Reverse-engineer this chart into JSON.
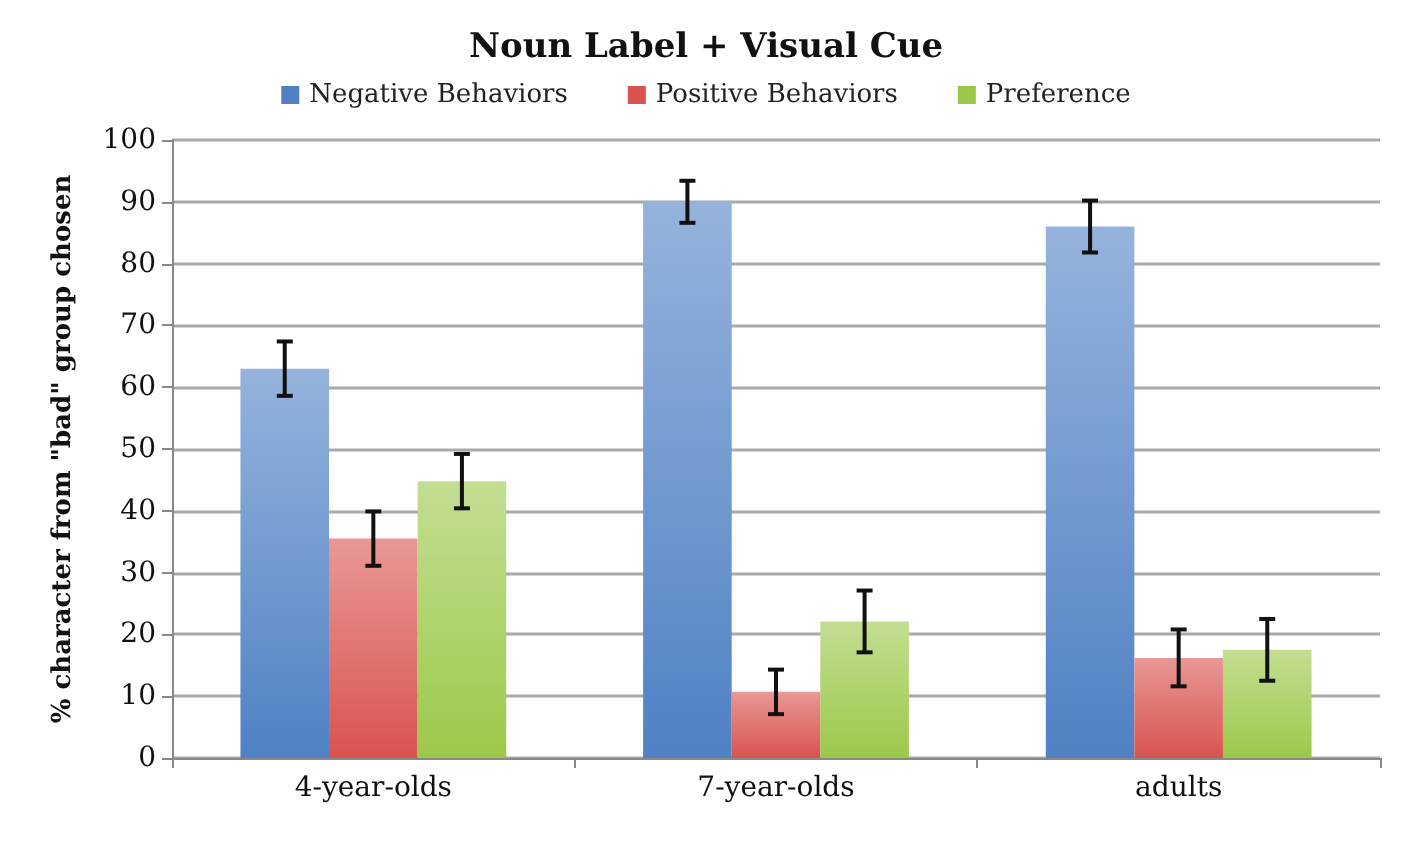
{
  "chart_data": {
    "type": "bar",
    "title": "Noun Label + Visual Cue",
    "ylabel": "% character from \"bad\" group chosen",
    "categories": [
      "4-year-olds",
      "7-year-olds",
      "adults"
    ],
    "series": [
      {
        "name": "Negative Behaviors",
        "color": "#4f81c4",
        "values": [
          63,
          90,
          86
        ],
        "errors": [
          4.4,
          3.4,
          4.2
        ]
      },
      {
        "name": "Positive Behaviors",
        "color": "#d9534f",
        "values": [
          35.5,
          10.7,
          16.2
        ],
        "errors": [
          4.4,
          3.6,
          4.6
        ]
      },
      {
        "name": "Preference",
        "color": "#9cc84a",
        "values": [
          44.8,
          22.1,
          17.5
        ],
        "errors": [
          4.4,
          5,
          5
        ]
      }
    ],
    "ylim": [
      0,
      100
    ],
    "yticks": [
      0,
      10,
      20,
      30,
      40,
      50,
      60,
      70,
      80,
      90,
      100
    ],
    "grid": "y",
    "legend": "top"
  }
}
